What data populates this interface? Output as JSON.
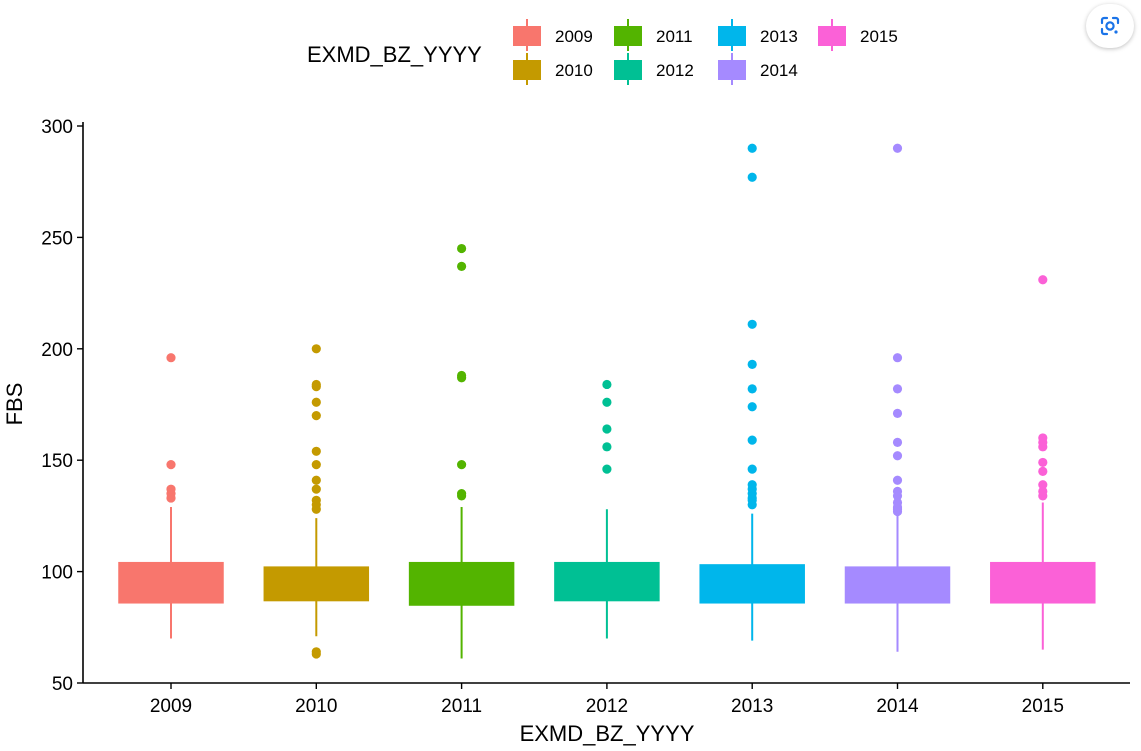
{
  "chart_data": {
    "type": "boxplot",
    "xlabel": "EXMD_BZ_YYYY",
    "ylabel": "FBS",
    "ylim": [
      50,
      300
    ],
    "yticks": [
      50,
      100,
      150,
      200,
      250,
      300
    ],
    "legend": {
      "title": "EXMD_BZ_YYYY",
      "placement": "top"
    },
    "categories": [
      "2009",
      "2010",
      "2011",
      "2012",
      "2013",
      "2014",
      "2015"
    ],
    "series": [
      {
        "name": "2009",
        "color": "#F8766D",
        "whisker_low": 70,
        "q1": 86,
        "q3": 104,
        "whisker_high": 129,
        "outliers": [
          133,
          135,
          137,
          148,
          196
        ]
      },
      {
        "name": "2010",
        "color": "#C49A00",
        "whisker_low": 71,
        "q1": 87,
        "q3": 102,
        "whisker_high": 124,
        "outliers": [
          63,
          64,
          128,
          130,
          132,
          137,
          141,
          148,
          154,
          170,
          176,
          183,
          184,
          200
        ]
      },
      {
        "name": "2011",
        "color": "#53B400",
        "whisker_low": 61,
        "q1": 85,
        "q3": 104,
        "whisker_high": 129,
        "outliers": [
          134,
          135,
          148,
          187,
          188,
          237,
          245
        ]
      },
      {
        "name": "2012",
        "color": "#00C094",
        "whisker_low": 70,
        "q1": 87,
        "q3": 104,
        "whisker_high": 128,
        "outliers": [
          146,
          156,
          164,
          176,
          184
        ]
      },
      {
        "name": "2013",
        "color": "#00B6EB",
        "whisker_low": 69,
        "q1": 86,
        "q3": 103,
        "whisker_high": 126,
        "outliers": [
          130,
          132,
          133,
          135,
          137,
          139,
          146,
          159,
          174,
          182,
          193,
          211,
          277,
          290
        ]
      },
      {
        "name": "2014",
        "color": "#A58AFF",
        "whisker_low": 64,
        "q1": 86,
        "q3": 102,
        "whisker_high": 125,
        "outliers": [
          127,
          128,
          129,
          131,
          134,
          136,
          141,
          152,
          158,
          171,
          182,
          196,
          290
        ]
      },
      {
        "name": "2015",
        "color": "#FB61D7",
        "whisker_low": 65,
        "q1": 86,
        "q3": 104,
        "whisker_high": 131,
        "outliers": [
          134,
          136,
          139,
          145,
          149,
          156,
          158,
          160,
          231
        ]
      }
    ]
  },
  "toolbar": {
    "lens_icon": "google-lens-icon"
  }
}
